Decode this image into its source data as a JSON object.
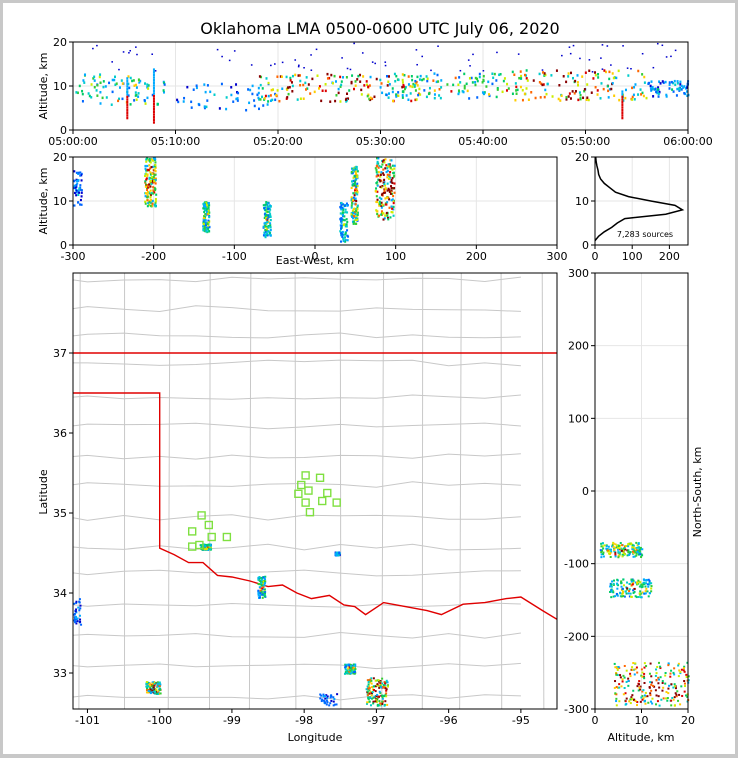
{
  "chart_data": [
    {
      "type": "scatter",
      "name": "altitude-time",
      "title": "Oklahoma LMA 0500-0600 UTC July 06, 2020",
      "ylabel": "Altitude, km",
      "xlim_minutes": [
        0,
        60
      ],
      "ylim": [
        0,
        20
      ],
      "xticks": [
        {
          "v": 0,
          "label": "05:00:00"
        },
        {
          "v": 10,
          "label": "05:10:00"
        },
        {
          "v": 20,
          "label": "05:20:00"
        },
        {
          "v": 30,
          "label": "05:30:00"
        },
        {
          "v": 40,
          "label": "05:40:00"
        },
        {
          "v": 50,
          "label": "05:50:00"
        },
        {
          "v": 60,
          "label": "06:00:00"
        }
      ],
      "yticks": [
        0,
        10,
        20
      ],
      "clusters": [
        {
          "t": [
            0,
            9
          ],
          "alt": [
            3,
            14
          ],
          "density": 0.5
        },
        {
          "t": [
            10,
            20
          ],
          "alt": [
            2,
            12
          ],
          "density": 0.25
        },
        {
          "t": [
            18,
            34
          ],
          "alt": [
            4,
            14
          ],
          "density": 1.0
        },
        {
          "t": [
            30,
            42
          ],
          "alt": [
            5,
            14
          ],
          "density": 0.6
        },
        {
          "t": [
            42,
            56
          ],
          "alt": [
            4,
            15
          ],
          "density": 0.9
        },
        {
          "t": [
            56,
            60
          ],
          "alt": [
            6,
            12
          ],
          "density": 0.3
        }
      ]
    },
    {
      "type": "scatter",
      "name": "altitude-eastwest",
      "xlabel": "East-West, km",
      "ylabel": "Altitude, km",
      "xlim": [
        -300,
        300
      ],
      "ylim": [
        0,
        20
      ],
      "xticks": [
        -300,
        -200,
        -100,
        0,
        100,
        200,
        300
      ],
      "yticks": [
        0,
        10,
        20
      ],
      "clusters": [
        {
          "x": [
            -212,
            -198
          ],
          "alt": [
            9,
            20
          ],
          "density": 0.8
        },
        {
          "x": [
            -140,
            -132
          ],
          "alt": [
            3,
            10
          ],
          "density": 0.6
        },
        {
          "x": [
            -65,
            -56
          ],
          "alt": [
            2,
            10
          ],
          "density": 0.5
        },
        {
          "x": [
            30,
            40
          ],
          "alt": [
            1,
            10
          ],
          "density": 0.4
        },
        {
          "x": [
            44,
            52
          ],
          "alt": [
            5,
            18
          ],
          "density": 0.7
        },
        {
          "x": [
            74,
            98
          ],
          "alt": [
            6,
            20
          ],
          "density": 1.0
        },
        {
          "x": [
            -300,
            -290
          ],
          "alt": [
            9,
            17
          ],
          "density": 0.2
        }
      ]
    },
    {
      "type": "line",
      "name": "altitude-histogram",
      "xlim": [
        0,
        250
      ],
      "ylim": [
        0,
        20
      ],
      "xticks": [
        0,
        100,
        200
      ],
      "yticks": [
        0,
        10,
        20
      ],
      "annotation": "7,283 sources",
      "profile": [
        [
          0,
          1
        ],
        [
          10,
          2
        ],
        [
          25,
          3
        ],
        [
          45,
          4
        ],
        [
          60,
          5
        ],
        [
          80,
          6
        ],
        [
          190,
          7
        ],
        [
          235,
          8
        ],
        [
          215,
          9
        ],
        [
          150,
          10
        ],
        [
          90,
          11
        ],
        [
          55,
          12
        ],
        [
          40,
          13
        ],
        [
          25,
          14
        ],
        [
          15,
          15
        ],
        [
          10,
          16
        ],
        [
          8,
          17
        ],
        [
          5,
          18
        ],
        [
          3,
          19
        ],
        [
          2,
          20
        ]
      ]
    },
    {
      "type": "scatter",
      "name": "plan-view-map",
      "xlabel": "Longitude",
      "ylabel": "Latitude",
      "xlim": [
        -101.2,
        -94.5
      ],
      "ylim": [
        32.55,
        38
      ],
      "xticks": [
        -101,
        -100,
        -99,
        -98,
        -97,
        -96,
        -95
      ],
      "yticks": [
        33,
        34,
        35,
        36,
        37
      ],
      "stations": [
        {
          "lon": -97.98,
          "lat": 35.47
        },
        {
          "lon": -97.78,
          "lat": 35.44
        },
        {
          "lon": -98.04,
          "lat": 35.35
        },
        {
          "lon": -97.94,
          "lat": 35.28
        },
        {
          "lon": -98.08,
          "lat": 35.24
        },
        {
          "lon": -97.68,
          "lat": 35.25
        },
        {
          "lon": -97.75,
          "lat": 35.15
        },
        {
          "lon": -97.98,
          "lat": 35.13
        },
        {
          "lon": -97.55,
          "lat": 35.13
        },
        {
          "lon": -97.92,
          "lat": 35.01
        },
        {
          "lon": -99.42,
          "lat": 34.97
        },
        {
          "lon": -99.32,
          "lat": 34.85
        },
        {
          "lon": -99.55,
          "lat": 34.77
        },
        {
          "lon": -99.28,
          "lat": 34.7
        },
        {
          "lon": -99.07,
          "lat": 34.7
        },
        {
          "lon": -99.45,
          "lat": 34.6
        },
        {
          "lon": -99.55,
          "lat": 34.58
        }
      ],
      "clusters": [
        {
          "lon": [
            -100.2,
            -100
          ],
          "lat": [
            32.75,
            32.9
          ],
          "density": 0.9
        },
        {
          "lon": [
            -99.45,
            -99.3
          ],
          "lat": [
            34.55,
            34.62
          ],
          "density": 0.6
        },
        {
          "lon": [
            -98.65,
            -98.55
          ],
          "lat": [
            33.95,
            34.22
          ],
          "density": 0.6
        },
        {
          "lon": [
            -97.58,
            -97.52
          ],
          "lat": [
            34.48,
            34.52
          ],
          "density": 0.3
        },
        {
          "lon": [
            -97.45,
            -97.3
          ],
          "lat": [
            33.0,
            33.12
          ],
          "density": 0.6
        },
        {
          "lon": [
            -97.15,
            -96.85
          ],
          "lat": [
            32.6,
            32.95
          ],
          "density": 1.0
        },
        {
          "lon": [
            -101.2,
            -101.1
          ],
          "lat": [
            33.6,
            33.95
          ],
          "density": 0.2
        },
        {
          "lon": [
            -97.8,
            -97.55
          ],
          "lat": [
            32.6,
            32.75
          ],
          "density": 0.2
        }
      ]
    },
    {
      "type": "scatter",
      "name": "northsouth-altitude",
      "xlabel": "Altitude, km",
      "ylabel": "North-South, km",
      "xlim": [
        0,
        20
      ],
      "ylim": [
        -300,
        300
      ],
      "xticks": [
        0,
        10,
        20
      ],
      "yticks": [
        -300,
        -200,
        -100,
        0,
        100,
        200,
        300
      ],
      "clusters": [
        {
          "alt": [
            1,
            10
          ],
          "ns": [
            -90,
            -70
          ],
          "density": 0.7
        },
        {
          "alt": [
            3,
            12
          ],
          "ns": [
            -145,
            -120
          ],
          "density": 0.6
        },
        {
          "alt": [
            4,
            20
          ],
          "ns": [
            -295,
            -235
          ],
          "density": 1.0
        }
      ]
    }
  ]
}
